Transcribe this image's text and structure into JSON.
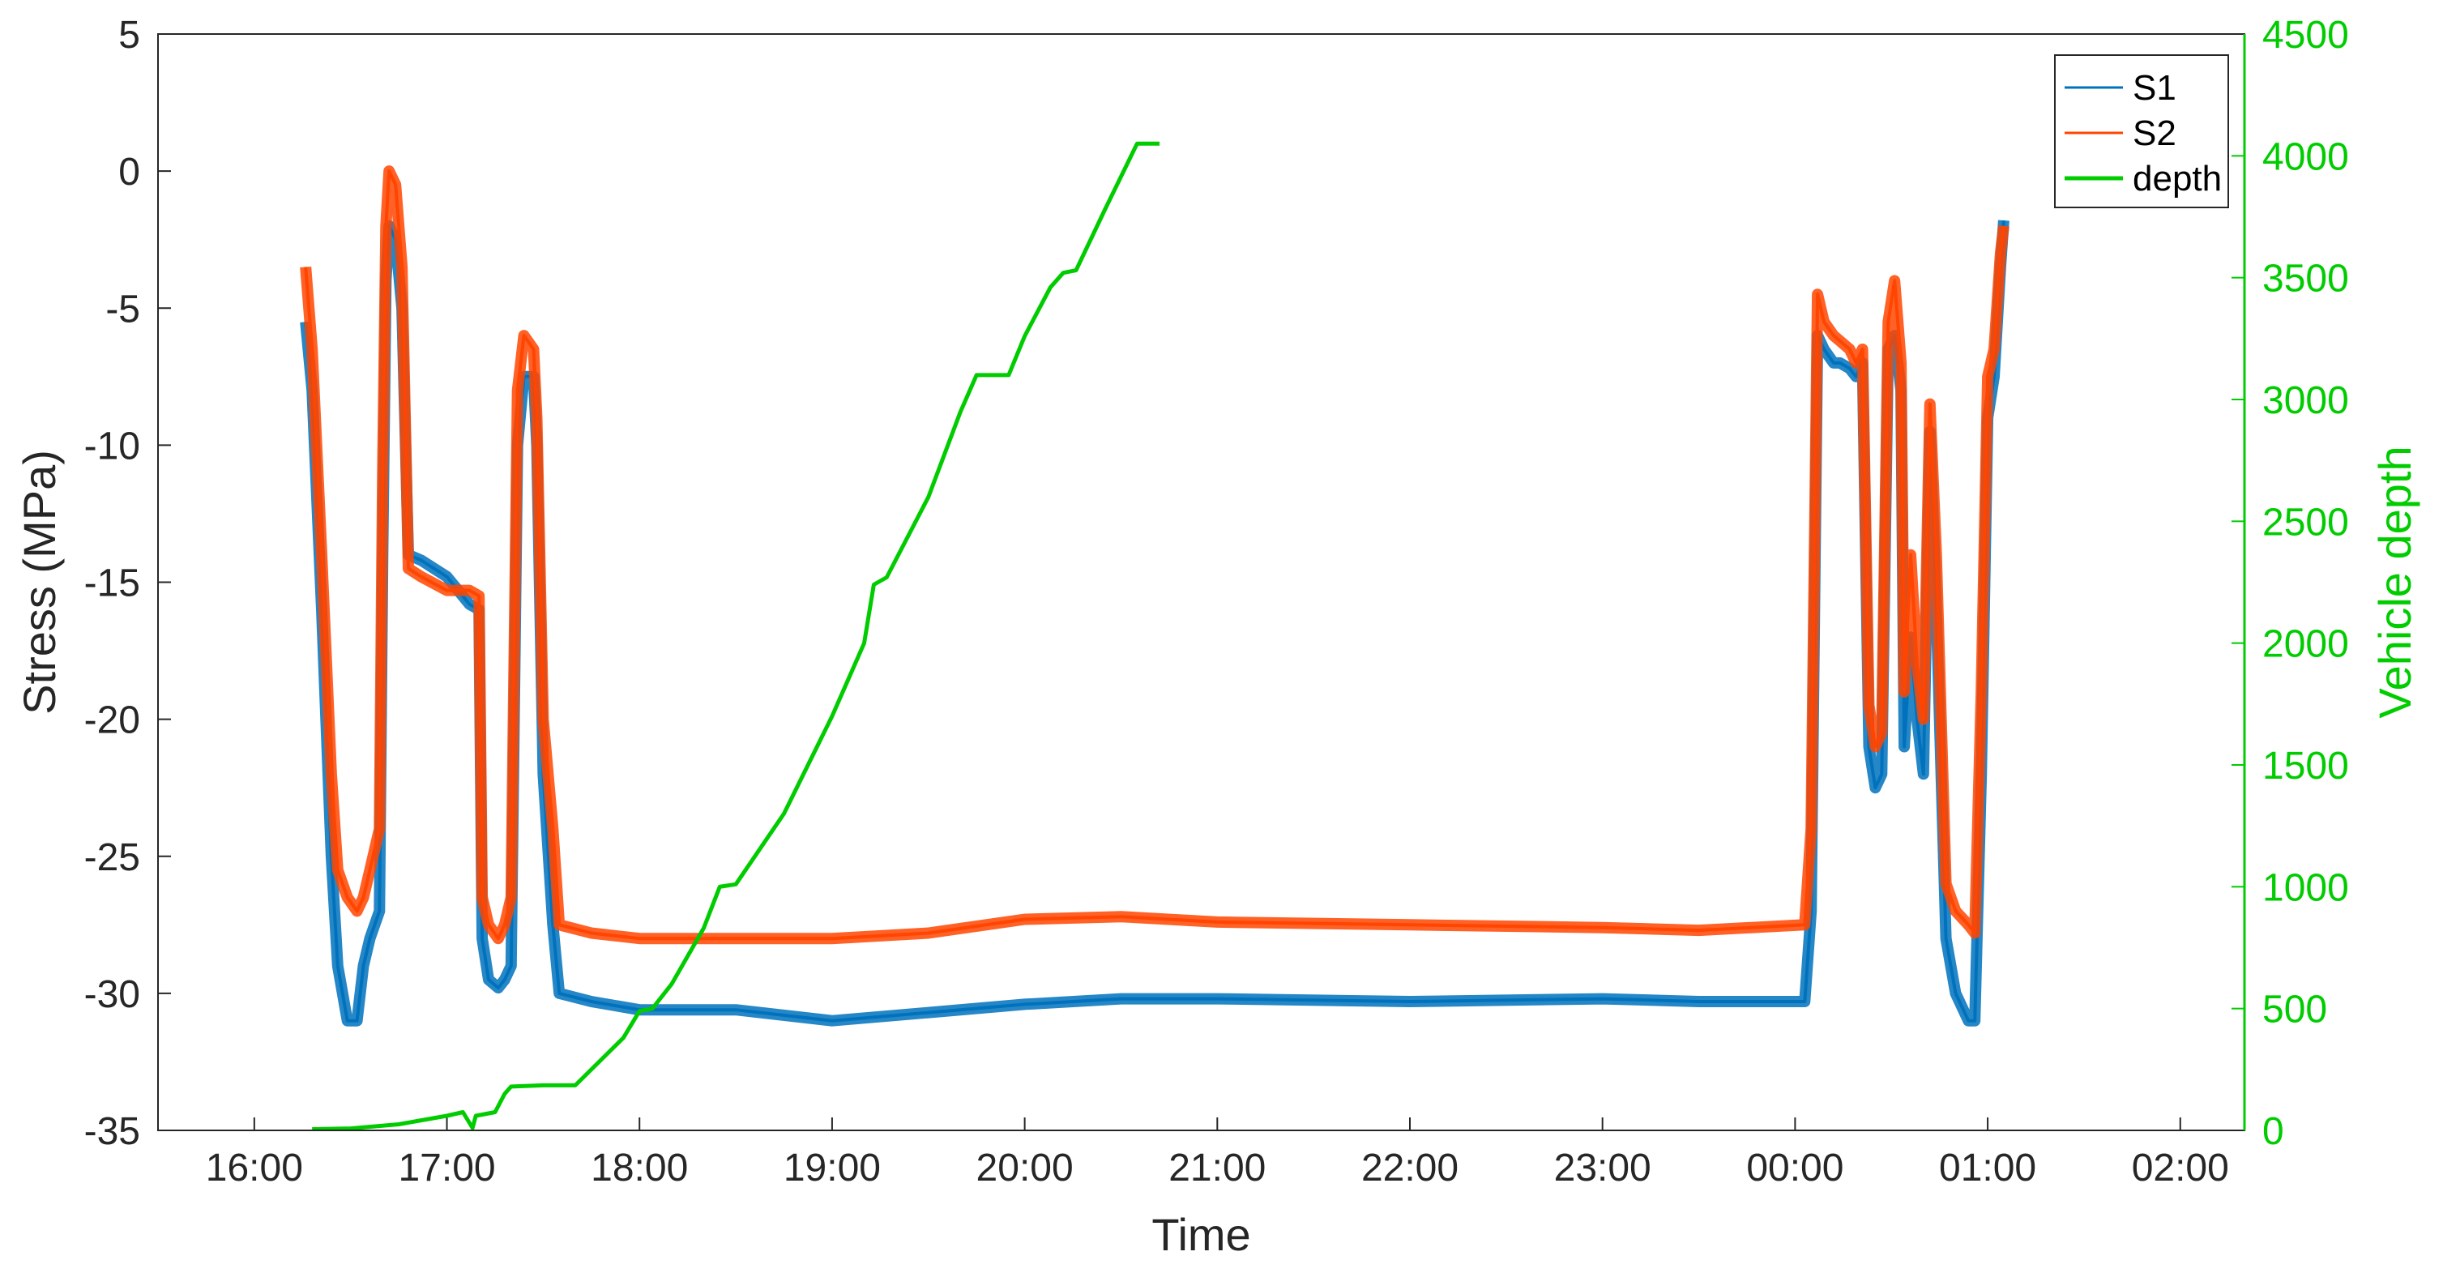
{
  "chart_data": {
    "type": "line",
    "xlabel": "Time",
    "ylabel": "Stress (MPa)",
    "ylabel_right": "Vehicle depth",
    "x_ticks": [
      "16:00",
      "17:00",
      "18:00",
      "19:00",
      "20:00",
      "21:00",
      "22:00",
      "23:00",
      "00:00",
      "01:00",
      "02:00"
    ],
    "xlim": [
      "15:30",
      "02:20"
    ],
    "ylim": [
      -35,
      5
    ],
    "y_ticks": [
      5,
      0,
      -5,
      -10,
      -15,
      -20,
      -25,
      -30,
      -35
    ],
    "ylim_right": [
      0,
      4500
    ],
    "y_ticks_right": [
      4500,
      4000,
      3500,
      3000,
      2500,
      2000,
      1500,
      1000,
      500,
      0
    ],
    "legend_position": "top-right",
    "colors": {
      "S1": "#0072BD",
      "S2": "#FF4500",
      "depth": "#00CC00",
      "axis": "#262626"
    },
    "series": [
      {
        "name": "S1",
        "axis": "left",
        "color": "#0072BD",
        "points": [
          [
            "16:16",
            -5.5
          ],
          [
            "16:18",
            -8
          ],
          [
            "16:21",
            -16
          ],
          [
            "16:24",
            -25
          ],
          [
            "16:26",
            -29
          ],
          [
            "16:29",
            -31
          ],
          [
            "16:32",
            -31
          ],
          [
            "16:34",
            -29
          ],
          [
            "16:36",
            -28
          ],
          [
            "16:39",
            -27
          ],
          [
            "16:40",
            -14
          ],
          [
            "16:41",
            -4
          ],
          [
            "16:42",
            -2
          ],
          [
            "16:44",
            -2.5
          ],
          [
            "16:46",
            -5
          ],
          [
            "16:48",
            -14
          ],
          [
            "16:52",
            -14.2
          ],
          [
            "17:00",
            -14.8
          ],
          [
            "17:07",
            -15.8
          ],
          [
            "17:10",
            -16
          ],
          [
            "17:11",
            -28
          ],
          [
            "17:13",
            -29.5
          ],
          [
            "17:16",
            -29.8
          ],
          [
            "17:18",
            -29.5
          ],
          [
            "17:20",
            -29
          ],
          [
            "17:22",
            -10
          ],
          [
            "17:24",
            -7.5
          ],
          [
            "17:27",
            -7.5
          ],
          [
            "17:28",
            -10
          ],
          [
            "17:30",
            -22
          ],
          [
            "17:33",
            -27.5
          ],
          [
            "17:35",
            -30
          ],
          [
            "17:45",
            -30.3
          ],
          [
            "18:00",
            -30.6
          ],
          [
            "18:30",
            -30.6
          ],
          [
            "19:00",
            -31
          ],
          [
            "19:30",
            -30.7
          ],
          [
            "20:00",
            -30.4
          ],
          [
            "20:30",
            -30.2
          ],
          [
            "21:00",
            -30.2
          ],
          [
            "22:00",
            -30.3
          ],
          [
            "23:00",
            -30.2
          ],
          [
            "23:30",
            -30.3
          ],
          [
            "00:03",
            -30.3
          ],
          [
            "00:05",
            -27
          ],
          [
            "00:07",
            -6
          ],
          [
            "00:09",
            -6.5
          ],
          [
            "00:12",
            -7
          ],
          [
            "00:14",
            -7
          ],
          [
            "00:17",
            -7.2
          ],
          [
            "00:19",
            -7.5
          ],
          [
            "00:21",
            -7
          ],
          [
            "00:23",
            -21
          ],
          [
            "00:25",
            -22.5
          ],
          [
            "00:27",
            -22
          ],
          [
            "00:29",
            -6.5
          ],
          [
            "00:31",
            -6
          ],
          [
            "00:33",
            -8
          ],
          [
            "00:34",
            -21
          ],
          [
            "00:36",
            -17
          ],
          [
            "00:38",
            -20
          ],
          [
            "00:40",
            -22
          ],
          [
            "00:42",
            -9.5
          ],
          [
            "00:44",
            -16
          ],
          [
            "00:47",
            -28
          ],
          [
            "00:50",
            -30
          ],
          [
            "00:54",
            -31
          ],
          [
            "00:56",
            -31
          ],
          [
            "00:58",
            -22
          ],
          [
            "01:00",
            -9
          ],
          [
            "01:02",
            -7.5
          ],
          [
            "01:04",
            -3.5
          ],
          [
            "01:05",
            -1.8
          ]
        ]
      },
      {
        "name": "S2",
        "axis": "left",
        "color": "#FF4500",
        "points": [
          [
            "16:16",
            -3.5
          ],
          [
            "16:18",
            -6.5
          ],
          [
            "16:21",
            -14
          ],
          [
            "16:24",
            -22
          ],
          [
            "16:26",
            -25.5
          ],
          [
            "16:29",
            -26.5
          ],
          [
            "16:32",
            -27
          ],
          [
            "16:34",
            -26.5
          ],
          [
            "16:36",
            -25.5
          ],
          [
            "16:39",
            -24
          ],
          [
            "16:40",
            -11
          ],
          [
            "16:41",
            -2
          ],
          [
            "16:42",
            0
          ],
          [
            "16:44",
            -0.5
          ],
          [
            "16:46",
            -3.5
          ],
          [
            "16:48",
            -14.5
          ],
          [
            "16:52",
            -14.8
          ],
          [
            "17:00",
            -15.3
          ],
          [
            "17:07",
            -15.3
          ],
          [
            "17:10",
            -15.5
          ],
          [
            "17:11",
            -26.5
          ],
          [
            "17:13",
            -27.5
          ],
          [
            "17:16",
            -28
          ],
          [
            "17:18",
            -27.5
          ],
          [
            "17:20",
            -26.5
          ],
          [
            "17:22",
            -8
          ],
          [
            "17:24",
            -6
          ],
          [
            "17:27",
            -6.5
          ],
          [
            "17:28",
            -9
          ],
          [
            "17:30",
            -20
          ],
          [
            "17:33",
            -24
          ],
          [
            "17:35",
            -27.5
          ],
          [
            "17:45",
            -27.8
          ],
          [
            "18:00",
            -28
          ],
          [
            "18:30",
            -28
          ],
          [
            "19:00",
            -28
          ],
          [
            "19:30",
            -27.8
          ],
          [
            "20:00",
            -27.3
          ],
          [
            "20:30",
            -27.2
          ],
          [
            "21:00",
            -27.4
          ],
          [
            "22:00",
            -27.5
          ],
          [
            "23:00",
            -27.6
          ],
          [
            "23:30",
            -27.7
          ],
          [
            "00:03",
            -27.5
          ],
          [
            "00:05",
            -24
          ],
          [
            "00:07",
            -4.5
          ],
          [
            "00:09",
            -5.5
          ],
          [
            "00:12",
            -6
          ],
          [
            "00:14",
            -6.2
          ],
          [
            "00:17",
            -6.5
          ],
          [
            "00:19",
            -7
          ],
          [
            "00:21",
            -6.5
          ],
          [
            "00:23",
            -19.5
          ],
          [
            "00:25",
            -21
          ],
          [
            "00:27",
            -20.5
          ],
          [
            "00:29",
            -5.5
          ],
          [
            "00:31",
            -4
          ],
          [
            "00:33",
            -7
          ],
          [
            "00:34",
            -19
          ],
          [
            "00:36",
            -14
          ],
          [
            "00:38",
            -18
          ],
          [
            "00:40",
            -20
          ],
          [
            "00:42",
            -8.5
          ],
          [
            "00:44",
            -14
          ],
          [
            "00:47",
            -26
          ],
          [
            "00:50",
            -27
          ],
          [
            "00:54",
            -27.5
          ],
          [
            "00:56",
            -27.8
          ],
          [
            "00:58",
            -19
          ],
          [
            "01:00",
            -7.5
          ],
          [
            "01:02",
            -6.5
          ],
          [
            "01:04",
            -3
          ],
          [
            "01:05",
            -2
          ]
        ]
      },
      {
        "name": "depth",
        "axis": "right",
        "color": "#00CC00",
        "points": [
          [
            "16:18",
            5
          ],
          [
            "16:30",
            8
          ],
          [
            "16:45",
            25
          ],
          [
            "17:00",
            60
          ],
          [
            "17:05",
            75
          ],
          [
            "17:08",
            10
          ],
          [
            "17:09",
            60
          ],
          [
            "17:15",
            75
          ],
          [
            "17:18",
            150
          ],
          [
            "17:20",
            180
          ],
          [
            "17:30",
            185
          ],
          [
            "17:40",
            185
          ],
          [
            "17:55",
            380
          ],
          [
            "18:00",
            490
          ],
          [
            "18:04",
            500
          ],
          [
            "18:10",
            600
          ],
          [
            "18:20",
            830
          ],
          [
            "18:25",
            1000
          ],
          [
            "18:30",
            1010
          ],
          [
            "18:45",
            1300
          ],
          [
            "19:00",
            1700
          ],
          [
            "19:10",
            2000
          ],
          [
            "19:13",
            2240
          ],
          [
            "19:17",
            2270
          ],
          [
            "19:30",
            2600
          ],
          [
            "19:40",
            2950
          ],
          [
            "19:45",
            3100
          ],
          [
            "19:55",
            3100
          ],
          [
            "20:00",
            3260
          ],
          [
            "20:08",
            3460
          ],
          [
            "20:12",
            3520
          ],
          [
            "20:16",
            3530
          ],
          [
            "20:25",
            3780
          ],
          [
            "20:35",
            4050
          ],
          [
            "20:42",
            4050
          ]
        ]
      }
    ]
  }
}
